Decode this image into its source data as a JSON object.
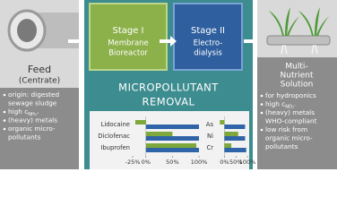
{
  "feed": {
    "title": "Feed",
    "subtitle": "(Centrate)",
    "bullets": [
      [
        "origin: digested",
        "sewage sludge"
      ],
      [
        "high c"
      ],
      [
        "(heavy) metals"
      ],
      [
        "organic micro-",
        "pollutants"
      ]
    ],
    "sub": "NH₄⁺"
  },
  "stages": [
    {
      "label": "Stage I",
      "desc": [
        "Membrane",
        "Bioreactor"
      ]
    },
    {
      "label": "Stage II",
      "desc": [
        "Electro-",
        "dialysis"
      ]
    }
  ],
  "removal": {
    "title": [
      "MICROPOLLUTANT",
      "REMOVAL"
    ],
    "charts": [
      {
        "type": "bar",
        "categories": [
          "Lidocaine",
          "Diclofenac",
          "Ibuprofen"
        ],
        "series": [
          {
            "color": "#7fa83c",
            "values": [
              -20,
              50,
              95
            ]
          },
          {
            "color": "#2f64a8",
            "values": [
              100,
              100,
              100
            ]
          }
        ],
        "xlim": [
          -25,
          100
        ],
        "xticks": [
          {
            "value": -25,
            "label": "-25%"
          },
          {
            "value": 0,
            "label": "0%"
          },
          {
            "value": 50,
            "label": "50%"
          },
          {
            "value": 100,
            "label": "100%"
          }
        ]
      },
      {
        "type": "bar",
        "categories": [
          "As",
          "Ni",
          "Cr"
        ],
        "series": [
          {
            "color": "#7fa83c",
            "values": [
              -20,
              60,
              30
            ]
          },
          {
            "color": "#2f64a8",
            "values": [
              90,
              90,
              95
            ]
          }
        ],
        "xlim": [
          -25,
          100
        ],
        "xticks": [
          {
            "value": 0,
            "label": "0%"
          },
          {
            "value": 50,
            "label": "50%"
          },
          {
            "value": 100,
            "label": "100%"
          }
        ]
      }
    ]
  },
  "output": {
    "title": [
      "Multi-",
      "Nutrient",
      "Solution"
    ],
    "bullets": [
      [
        "for hydroponics"
      ],
      [
        "high c"
      ],
      [
        "(heavy) metals",
        "WHO-compliant"
      ],
      [
        "low risk from",
        "organic micro-",
        "pollutants"
      ]
    ],
    "sub": "NO₃⁻"
  }
}
